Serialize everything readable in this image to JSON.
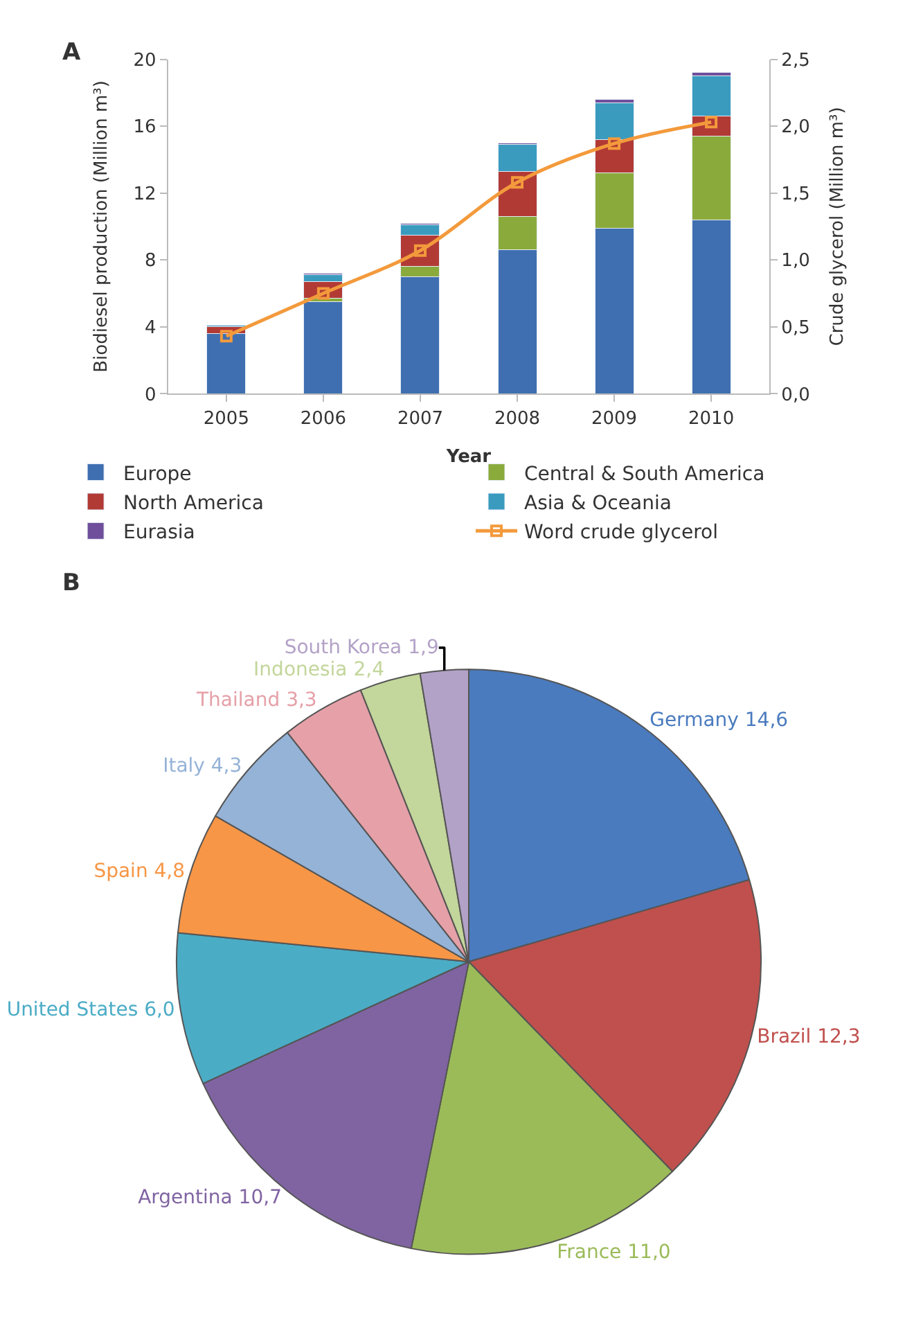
{
  "chart_data": [
    {
      "type": "bar",
      "title": "A",
      "xlabel": "Year",
      "ylabel": "Biodiesel production (Million m³)",
      "y2label": "Crude glycerol (Million m³)",
      "categories": [
        "2005",
        "2006",
        "2007",
        "2008",
        "2009",
        "2010"
      ],
      "stacked": true,
      "legend": "bottom",
      "series": [
        {
          "name": "Europe",
          "color": "#3f6fb0",
          "values": [
            3.6,
            5.5,
            7.0,
            8.6,
            9.9,
            10.4
          ]
        },
        {
          "name": "Central & South America",
          "color": "#8aab3c",
          "values": [
            null,
            0.2,
            0.6,
            2.0,
            3.3,
            5.0
          ]
        },
        {
          "name": "North America",
          "color": "#b23a35",
          "values": [
            0.4,
            1.0,
            1.9,
            2.7,
            2.0,
            1.2
          ]
        },
        {
          "name": "Asia & Oceania",
          "color": "#3a9bbf",
          "values": [
            0.1,
            0.4,
            0.6,
            1.6,
            2.2,
            2.4
          ]
        },
        {
          "name": "Eurasia",
          "color": "#6f4f9b",
          "values": [
            null,
            0.1,
            0.1,
            0.1,
            0.2,
            0.2
          ]
        },
        {
          "name": "Word crude glycerol",
          "type": "line",
          "axis": "y2",
          "color": "#f39a3c",
          "marker": "square",
          "values": [
            0.43,
            0.75,
            1.07,
            1.58,
            1.87,
            2.03
          ]
        }
      ],
      "ylim": [
        0,
        20
      ],
      "yticks": [
        0,
        4,
        8,
        12,
        16,
        20
      ],
      "y2lim": [
        0,
        2.5
      ],
      "y2ticks": [
        {
          "value": 0,
          "label": "0,0"
        },
        {
          "value": 0.5,
          "label": "0,5"
        },
        {
          "value": 1,
          "label": "1,0"
        },
        {
          "value": 1.5,
          "label": "1,5"
        },
        {
          "value": 2,
          "label": "2,0"
        },
        {
          "value": 2.5,
          "label": "2,5"
        }
      ]
    },
    {
      "type": "pie",
      "title": "B",
      "categories": [
        "Germany",
        "Brazil",
        "France",
        "Argentina",
        "United States",
        "Spain",
        "Italy",
        "Thailand",
        "Indonesia",
        "South Korea"
      ],
      "values": [
        14.6,
        12.3,
        11.0,
        10.7,
        6.0,
        4.8,
        4.3,
        3.3,
        2.4,
        1.9
      ],
      "value_labels": [
        "14,6",
        "12,3",
        "11,0",
        "10,7",
        "6,0",
        "4,8",
        "4,3",
        "3,3",
        "2,4",
        "1,9"
      ],
      "colors": [
        "#4a7bbf",
        "#c0504d",
        "#9bbb59",
        "#8064a2",
        "#4bacc6",
        "#f79646",
        "#95b3d7",
        "#e6a0a8",
        "#c3d69b",
        "#b3a2c7"
      ]
    }
  ]
}
